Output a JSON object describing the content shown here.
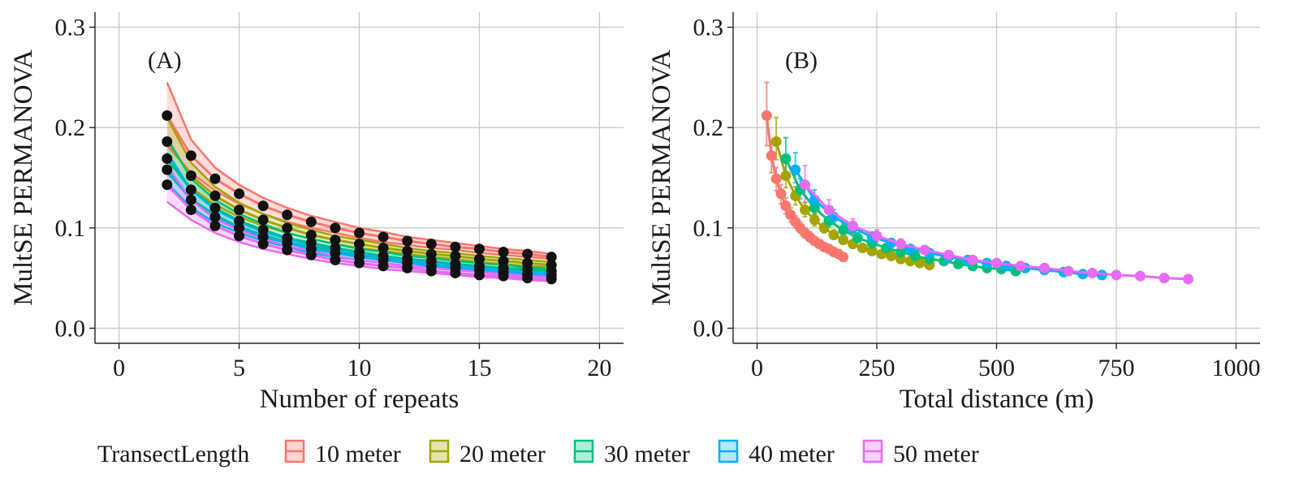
{
  "legend": {
    "title": "TransectLength",
    "entries": [
      {
        "label": "10 meter",
        "color": "#F8766D"
      },
      {
        "label": "20 meter",
        "color": "#A3A500"
      },
      {
        "label": "30 meter",
        "color": "#00BF7D"
      },
      {
        "label": "40 meter",
        "color": "#00B0F6"
      },
      {
        "label": "50 meter",
        "color": "#E76BF3"
      }
    ]
  },
  "chart_data": [
    {
      "type": "line",
      "panel_label": "(A)",
      "xlabel": "Number of repeats",
      "ylabel": "MultSE PERMANOVA",
      "xlim": [
        -1,
        21
      ],
      "ylim": [
        -0.015,
        0.315
      ],
      "xticks": [
        0,
        5,
        10,
        15,
        20
      ],
      "yticks": [
        0.0,
        0.1,
        0.2,
        0.3
      ],
      "ytick_labels": [
        "0.0",
        "0.1",
        "0.2",
        "0.3"
      ],
      "grid": true,
      "series": [
        {
          "name": "10 meter",
          "color": "#F8766D",
          "x": [
            2,
            3,
            4,
            5,
            6,
            7,
            8,
            9,
            10,
            11,
            12,
            13,
            14,
            15,
            16,
            17,
            18
          ],
          "y": [
            0.212,
            0.172,
            0.149,
            0.134,
            0.122,
            0.113,
            0.106,
            0.1,
            0.095,
            0.091,
            0.087,
            0.084,
            0.081,
            0.079,
            0.076,
            0.074,
            0.071
          ],
          "lower": [
            0.182,
            0.155,
            0.137,
            0.124,
            0.114,
            0.106,
            0.1,
            0.095,
            0.09,
            0.086,
            0.083,
            0.08,
            0.078,
            0.075,
            0.073,
            0.071,
            0.069
          ],
          "upper": [
            0.245,
            0.188,
            0.16,
            0.143,
            0.13,
            0.12,
            0.112,
            0.106,
            0.1,
            0.096,
            0.091,
            0.088,
            0.085,
            0.082,
            0.079,
            0.077,
            0.074
          ]
        },
        {
          "name": "20 meter",
          "color": "#A3A500",
          "x": [
            2,
            3,
            4,
            5,
            6,
            7,
            8,
            9,
            10,
            11,
            12,
            13,
            14,
            15,
            16,
            17,
            18
          ],
          "y": [
            0.186,
            0.152,
            0.132,
            0.118,
            0.108,
            0.1,
            0.093,
            0.088,
            0.084,
            0.08,
            0.077,
            0.074,
            0.072,
            0.069,
            0.067,
            0.065,
            0.063
          ],
          "lower": [
            0.168,
            0.14,
            0.123,
            0.111,
            0.102,
            0.095,
            0.089,
            0.084,
            0.08,
            0.077,
            0.074,
            0.071,
            0.069,
            0.066,
            0.064,
            0.062,
            0.061
          ],
          "upper": [
            0.21,
            0.165,
            0.141,
            0.125,
            0.114,
            0.105,
            0.098,
            0.092,
            0.088,
            0.084,
            0.08,
            0.077,
            0.075,
            0.072,
            0.07,
            0.068,
            0.066
          ]
        },
        {
          "name": "30 meter",
          "color": "#00BF7D",
          "x": [
            2,
            3,
            4,
            5,
            6,
            7,
            8,
            9,
            10,
            11,
            12,
            13,
            14,
            15,
            16,
            17,
            18
          ],
          "y": [
            0.169,
            0.138,
            0.12,
            0.107,
            0.098,
            0.09,
            0.085,
            0.08,
            0.076,
            0.072,
            0.069,
            0.067,
            0.064,
            0.062,
            0.06,
            0.059,
            0.057
          ],
          "lower": [
            0.155,
            0.129,
            0.113,
            0.101,
            0.093,
            0.086,
            0.081,
            0.076,
            0.072,
            0.069,
            0.066,
            0.064,
            0.062,
            0.06,
            0.058,
            0.057,
            0.055
          ],
          "upper": [
            0.19,
            0.149,
            0.128,
            0.114,
            0.104,
            0.095,
            0.089,
            0.084,
            0.079,
            0.076,
            0.072,
            0.07,
            0.067,
            0.065,
            0.063,
            0.061,
            0.059
          ]
        },
        {
          "name": "40 meter",
          "color": "#00B0F6",
          "x": [
            2,
            3,
            4,
            5,
            6,
            7,
            8,
            9,
            10,
            11,
            12,
            13,
            14,
            15,
            16,
            17,
            18
          ],
          "y": [
            0.158,
            0.128,
            0.111,
            0.1,
            0.091,
            0.085,
            0.079,
            0.075,
            0.071,
            0.068,
            0.065,
            0.062,
            0.06,
            0.058,
            0.056,
            0.054,
            0.053
          ],
          "lower": [
            0.145,
            0.12,
            0.105,
            0.095,
            0.087,
            0.081,
            0.075,
            0.071,
            0.068,
            0.065,
            0.062,
            0.06,
            0.058,
            0.056,
            0.054,
            0.052,
            0.051
          ],
          "upper": [
            0.175,
            0.138,
            0.118,
            0.106,
            0.096,
            0.089,
            0.083,
            0.078,
            0.074,
            0.071,
            0.068,
            0.065,
            0.062,
            0.06,
            0.058,
            0.056,
            0.055
          ]
        },
        {
          "name": "50 meter",
          "color": "#E76BF3",
          "x": [
            2,
            3,
            4,
            5,
            6,
            7,
            8,
            9,
            10,
            11,
            12,
            13,
            14,
            15,
            16,
            17,
            18
          ],
          "y": [
            0.143,
            0.118,
            0.102,
            0.092,
            0.084,
            0.078,
            0.073,
            0.068,
            0.065,
            0.062,
            0.06,
            0.057,
            0.055,
            0.053,
            0.052,
            0.05,
            0.049
          ],
          "lower": [
            0.126,
            0.108,
            0.095,
            0.086,
            0.079,
            0.074,
            0.069,
            0.065,
            0.062,
            0.059,
            0.057,
            0.055,
            0.053,
            0.051,
            0.05,
            0.048,
            0.047
          ],
          "upper": [
            0.162,
            0.128,
            0.109,
            0.098,
            0.089,
            0.082,
            0.077,
            0.072,
            0.068,
            0.065,
            0.062,
            0.06,
            0.058,
            0.056,
            0.054,
            0.052,
            0.051
          ]
        }
      ]
    },
    {
      "type": "line",
      "panel_label": "(B)",
      "xlabel": "Total distance (m)",
      "ylabel": "MultSE PERMANOVA",
      "xlim": [
        -50,
        1050
      ],
      "ylim": [
        -0.015,
        0.315
      ],
      "xticks": [
        0,
        250,
        500,
        750,
        1000
      ],
      "yticks": [
        0.0,
        0.1,
        0.2,
        0.3
      ],
      "ytick_labels": [
        "0.0",
        "0.1",
        "0.2",
        "0.3"
      ],
      "grid": true,
      "series": [
        {
          "name": "10 meter",
          "color": "#F8766D",
          "x": [
            20,
            30,
            40,
            50,
            60,
            70,
            80,
            90,
            100,
            110,
            120,
            130,
            140,
            150,
            160,
            170,
            180
          ],
          "y": [
            0.212,
            0.172,
            0.149,
            0.134,
            0.122,
            0.113,
            0.106,
            0.1,
            0.095,
            0.091,
            0.087,
            0.084,
            0.081,
            0.079,
            0.076,
            0.074,
            0.071
          ],
          "lower": [
            0.182,
            0.155,
            0.137,
            0.124,
            0.114,
            0.106,
            0.1,
            0.095,
            0.09,
            0.086,
            0.083,
            0.08,
            0.078,
            0.075,
            0.073,
            0.071,
            0.069
          ],
          "upper": [
            0.245,
            0.188,
            0.16,
            0.143,
            0.13,
            0.12,
            0.112,
            0.106,
            0.1,
            0.096,
            0.091,
            0.088,
            0.085,
            0.082,
            0.079,
            0.077,
            0.074
          ]
        },
        {
          "name": "20 meter",
          "color": "#A3A500",
          "x": [
            40,
            60,
            80,
            100,
            120,
            140,
            160,
            180,
            200,
            220,
            240,
            260,
            280,
            300,
            320,
            340,
            360
          ],
          "y": [
            0.186,
            0.152,
            0.132,
            0.118,
            0.108,
            0.1,
            0.093,
            0.088,
            0.084,
            0.08,
            0.077,
            0.074,
            0.072,
            0.069,
            0.067,
            0.065,
            0.063
          ],
          "lower": [
            0.168,
            0.14,
            0.123,
            0.111,
            0.102,
            0.095,
            0.089,
            0.084,
            0.08,
            0.077,
            0.074,
            0.071,
            0.069,
            0.066,
            0.064,
            0.062,
            0.061
          ],
          "upper": [
            0.21,
            0.165,
            0.141,
            0.125,
            0.114,
            0.105,
            0.098,
            0.092,
            0.088,
            0.084,
            0.08,
            0.077,
            0.075,
            0.072,
            0.07,
            0.068,
            0.066
          ]
        },
        {
          "name": "30 meter",
          "color": "#00BF7D",
          "x": [
            60,
            90,
            120,
            150,
            180,
            210,
            240,
            270,
            300,
            330,
            360,
            390,
            420,
            450,
            480,
            510,
            540
          ],
          "y": [
            0.169,
            0.138,
            0.12,
            0.107,
            0.098,
            0.09,
            0.085,
            0.08,
            0.076,
            0.072,
            0.069,
            0.067,
            0.064,
            0.062,
            0.06,
            0.059,
            0.057
          ],
          "lower": [
            0.155,
            0.129,
            0.113,
            0.101,
            0.093,
            0.086,
            0.081,
            0.076,
            0.072,
            0.069,
            0.066,
            0.064,
            0.062,
            0.06,
            0.058,
            0.057,
            0.055
          ],
          "upper": [
            0.19,
            0.149,
            0.128,
            0.114,
            0.104,
            0.095,
            0.089,
            0.084,
            0.079,
            0.076,
            0.072,
            0.07,
            0.067,
            0.065,
            0.063,
            0.061,
            0.059
          ]
        },
        {
          "name": "40 meter",
          "color": "#00B0F6",
          "x": [
            80,
            120,
            160,
            200,
            240,
            280,
            320,
            360,
            400,
            440,
            480,
            520,
            560,
            600,
            640,
            680,
            720
          ],
          "y": [
            0.158,
            0.128,
            0.111,
            0.1,
            0.091,
            0.085,
            0.079,
            0.075,
            0.071,
            0.068,
            0.065,
            0.062,
            0.06,
            0.058,
            0.056,
            0.054,
            0.053
          ],
          "lower": [
            0.145,
            0.12,
            0.105,
            0.095,
            0.087,
            0.081,
            0.075,
            0.071,
            0.068,
            0.065,
            0.062,
            0.06,
            0.058,
            0.056,
            0.054,
            0.052,
            0.051
          ],
          "upper": [
            0.175,
            0.138,
            0.118,
            0.106,
            0.096,
            0.089,
            0.083,
            0.078,
            0.074,
            0.071,
            0.068,
            0.065,
            0.062,
            0.06,
            0.058,
            0.056,
            0.055
          ]
        },
        {
          "name": "50 meter",
          "color": "#E76BF3",
          "x": [
            100,
            150,
            200,
            250,
            300,
            350,
            400,
            450,
            500,
            550,
            600,
            650,
            700,
            750,
            800,
            850,
            900
          ],
          "y": [
            0.143,
            0.118,
            0.102,
            0.092,
            0.084,
            0.078,
            0.073,
            0.068,
            0.065,
            0.062,
            0.06,
            0.057,
            0.055,
            0.053,
            0.052,
            0.05,
            0.049
          ],
          "lower": [
            0.126,
            0.108,
            0.095,
            0.086,
            0.079,
            0.074,
            0.069,
            0.065,
            0.062,
            0.059,
            0.057,
            0.055,
            0.053,
            0.051,
            0.05,
            0.048,
            0.047
          ],
          "upper": [
            0.162,
            0.128,
            0.109,
            0.098,
            0.089,
            0.082,
            0.077,
            0.072,
            0.068,
            0.065,
            0.062,
            0.06,
            0.058,
            0.056,
            0.054,
            0.052,
            0.051
          ]
        }
      ]
    }
  ]
}
